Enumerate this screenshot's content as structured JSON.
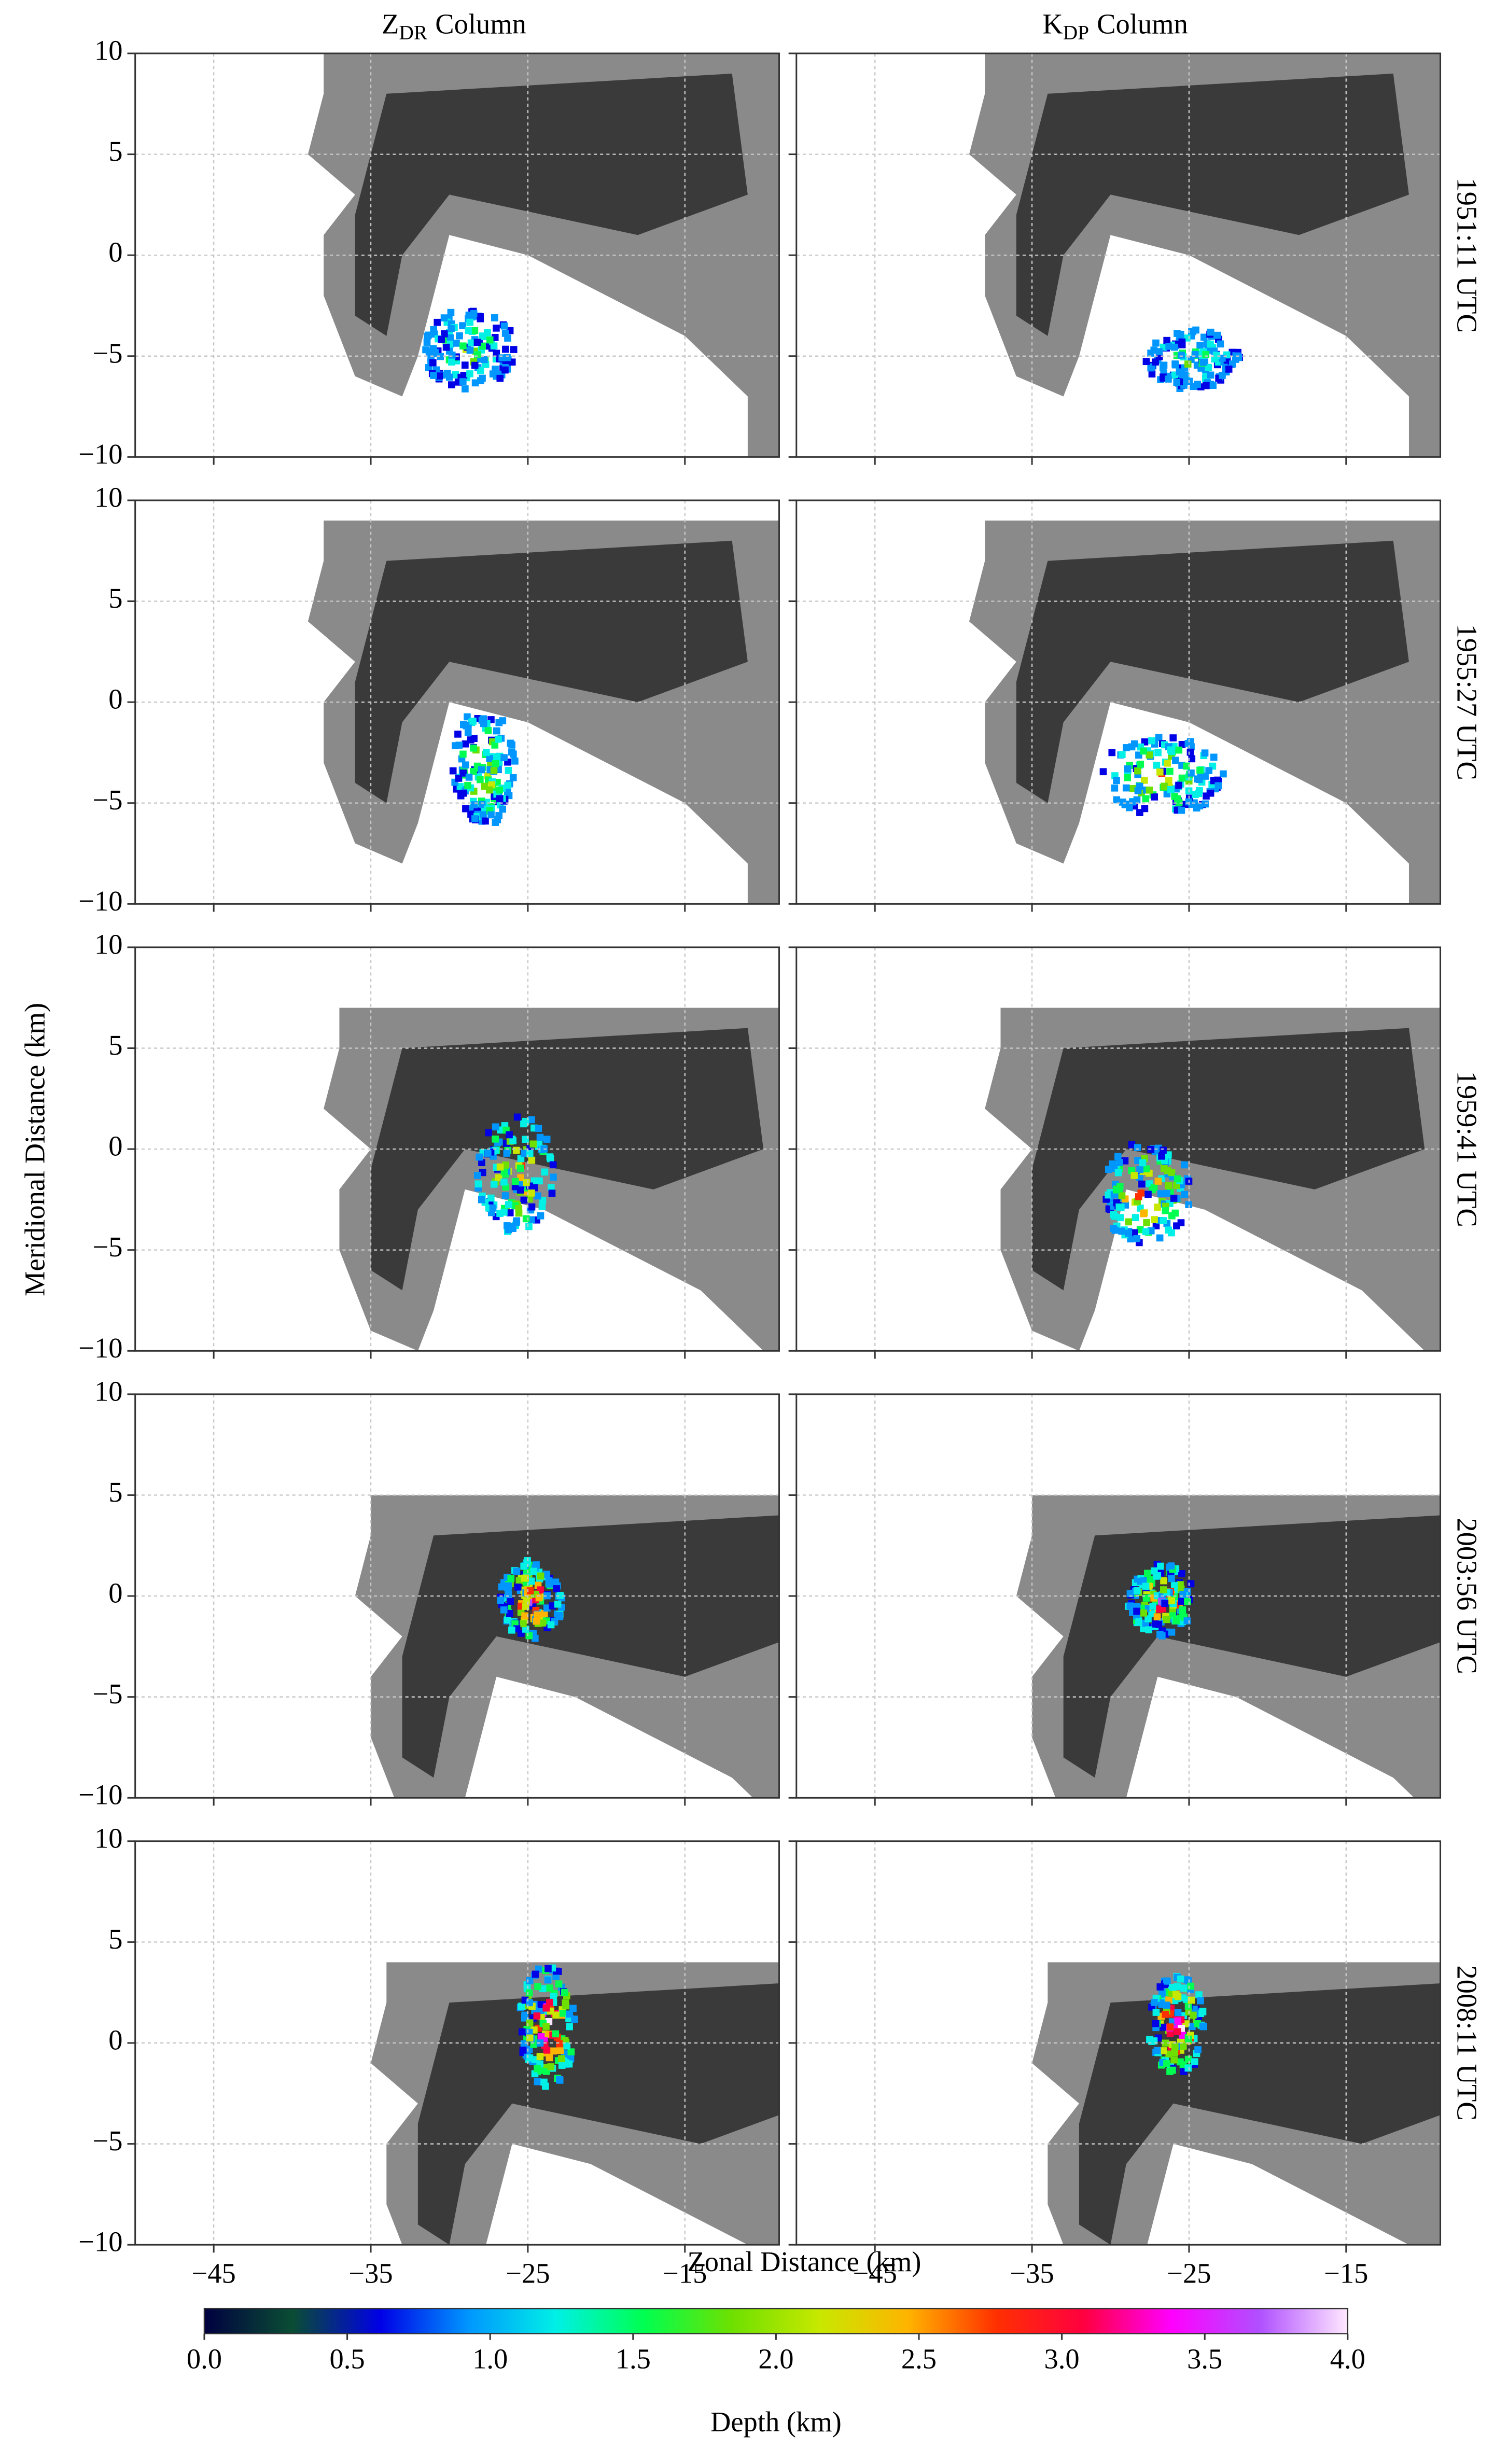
{
  "chart_data": {
    "type": "image-grid",
    "columns": [
      {
        "main": "Z",
        "sub": "DR",
        "rest": "Column"
      },
      {
        "main": "K",
        "sub": "DP",
        "rest": "Column"
      }
    ],
    "rows": [
      "1951:11 UTC",
      "1955:27 UTC",
      "1959:41 UTC",
      "2003:56 UTC",
      "2008:11 UTC"
    ],
    "xlabel": "Zonal Distance (km)",
    "ylabel": "Meridional Distance (km)",
    "xlim": [
      -50,
      -9
    ],
    "ylim": [
      -10,
      10
    ],
    "xticks": [
      {
        "value": -45,
        "label": "−45"
      },
      {
        "value": -35,
        "label": "−35"
      },
      {
        "value": -25,
        "label": "−25"
      },
      {
        "value": -15,
        "label": "−15"
      }
    ],
    "yticks": [
      {
        "value": -10,
        "label": "−10"
      },
      {
        "value": -5,
        "label": "−5"
      },
      0,
      5,
      10
    ],
    "grid": true,
    "colorbar": {
      "label": "Depth (km)",
      "lim": [
        0,
        4
      ],
      "ticks": [
        {
          "value": 0,
          "label": "0.0"
        },
        {
          "value": 0.5,
          "label": "0.5"
        },
        {
          "value": 1,
          "label": "1.0"
        },
        {
          "value": 1.5,
          "label": "1.5"
        },
        {
          "value": 2,
          "label": "2.0"
        },
        {
          "value": 2.5,
          "label": "2.5"
        },
        {
          "value": 3,
          "label": "3.0"
        },
        {
          "value": 3.5,
          "label": "3.5"
        },
        {
          "value": 4,
          "label": "4.0"
        }
      ],
      "colors": [
        "#000040",
        "#0a4d33",
        "#0000e6",
        "#0096ff",
        "#00f0e6",
        "#00ff50",
        "#6ee000",
        "#c8e800",
        "#ffb400",
        "#ff3000",
        "#ff0040",
        "#ff00ff",
        "#b050ff",
        "#ffe8ff"
      ]
    }
  }
}
